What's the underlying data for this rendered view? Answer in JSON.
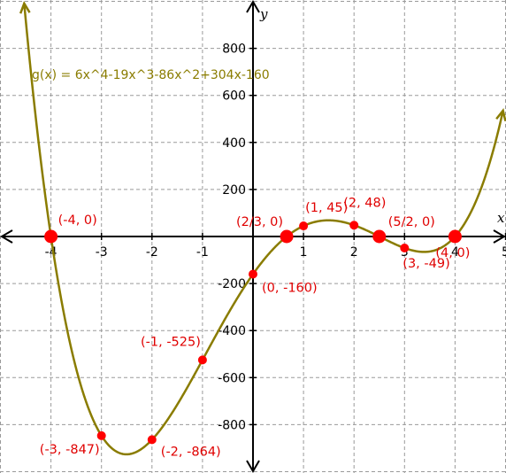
{
  "chart_data": {
    "type": "line",
    "title": "",
    "xlabel": "x",
    "ylabel": "y",
    "xlim": [
      -5,
      5
    ],
    "ylim": [
      -1000,
      1000
    ],
    "grid": true,
    "x_ticks": [
      -4,
      -3,
      -2,
      -1,
      1,
      2,
      3,
      4,
      5
    ],
    "x_tick_labels": [
      "-4",
      "-3",
      "-2",
      "-1",
      "1",
      "2",
      "3",
      "4",
      "5"
    ],
    "y_ticks": [
      800,
      600,
      400,
      200,
      -200,
      -400,
      -600,
      -800
    ],
    "y_tick_labels": [
      "800",
      "600",
      "400",
      "200",
      "-200",
      "-400",
      "-600",
      "-800"
    ],
    "function_label": "g(x) = 6x^4-19x^3-86x^2+304x-160",
    "function_coefficients": [
      6,
      -19,
      -86,
      304,
      -160
    ],
    "curve_color": "#8a7c00",
    "point_color": "#ff0000",
    "label_color": "#e00000",
    "points": [
      {
        "x": -4,
        "y": 0,
        "label": "(-4, 0)",
        "kind": "root"
      },
      {
        "x": -3,
        "y": -847,
        "label": "(-3, -847)",
        "kind": "point"
      },
      {
        "x": -2,
        "y": -864,
        "label": "(-2, -864)",
        "kind": "point"
      },
      {
        "x": -1,
        "y": -525,
        "label": "(-1, -525)",
        "kind": "point"
      },
      {
        "x": 0,
        "y": -160,
        "label": "(0, -160)",
        "kind": "point"
      },
      {
        "x": 0.6667,
        "y": 0,
        "label": "(2/3, 0)",
        "kind": "root"
      },
      {
        "x": 1,
        "y": 45,
        "label": "(1, 45)",
        "kind": "point"
      },
      {
        "x": 2,
        "y": 48,
        "label": "(2, 48)",
        "kind": "point"
      },
      {
        "x": 2.5,
        "y": 0,
        "label": "(5/2, 0)",
        "kind": "root"
      },
      {
        "x": 3,
        "y": -49,
        "label": "(3, -49)",
        "kind": "point"
      },
      {
        "x": 4,
        "y": 0,
        "label": "(4, 0)",
        "kind": "root"
      }
    ]
  }
}
